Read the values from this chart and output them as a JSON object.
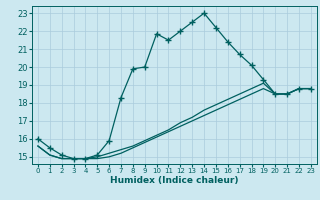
{
  "xlabel": "Humidex (Indice chaleur)",
  "bg_color": "#cce8f0",
  "grid_color": "#aaccdd",
  "line_color": "#006060",
  "xlim": [
    -0.5,
    23.5
  ],
  "ylim": [
    14.6,
    23.4
  ],
  "yticks": [
    15,
    16,
    17,
    18,
    19,
    20,
    21,
    22,
    23
  ],
  "xticks": [
    0,
    1,
    2,
    3,
    4,
    5,
    6,
    7,
    8,
    9,
    10,
    11,
    12,
    13,
    14,
    15,
    16,
    17,
    18,
    19,
    20,
    21,
    22,
    23
  ],
  "line1_x": [
    0,
    1,
    2,
    3,
    4,
    5,
    6,
    7,
    8,
    9,
    10,
    11,
    12,
    13,
    14,
    15,
    16,
    17,
    18,
    19,
    20,
    21,
    22,
    23
  ],
  "line1_y": [
    16.0,
    15.5,
    15.1,
    14.9,
    14.9,
    15.1,
    15.9,
    18.3,
    19.9,
    20.0,
    21.85,
    21.5,
    22.0,
    22.5,
    23.0,
    22.2,
    21.4,
    20.7,
    20.1,
    19.3,
    18.5,
    18.5,
    18.8,
    18.8
  ],
  "line2_x": [
    0,
    1,
    2,
    3,
    4,
    5,
    6,
    7,
    8,
    9,
    10,
    11,
    12,
    13,
    14,
    15,
    16,
    17,
    18,
    19,
    20,
    21,
    22,
    23
  ],
  "line2_y": [
    15.6,
    15.1,
    14.9,
    14.9,
    14.9,
    15.0,
    15.2,
    15.4,
    15.6,
    15.9,
    16.2,
    16.5,
    16.9,
    17.2,
    17.6,
    17.9,
    18.2,
    18.5,
    18.8,
    19.1,
    18.5,
    18.5,
    18.8,
    18.8
  ],
  "line3_x": [
    0,
    1,
    2,
    3,
    4,
    5,
    6,
    7,
    8,
    9,
    10,
    11,
    12,
    13,
    14,
    15,
    16,
    17,
    18,
    19,
    20,
    21,
    22,
    23
  ],
  "line3_y": [
    15.6,
    15.1,
    14.9,
    14.9,
    14.9,
    14.9,
    15.0,
    15.2,
    15.5,
    15.8,
    16.1,
    16.4,
    16.7,
    17.0,
    17.3,
    17.6,
    17.9,
    18.2,
    18.5,
    18.8,
    18.5,
    18.5,
    18.8,
    18.8
  ]
}
